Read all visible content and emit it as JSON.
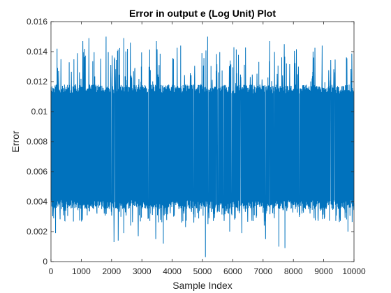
{
  "chart_data": {
    "type": "line",
    "title": "Error in output e (Log Unit) Plot",
    "xlabel": "Sample Index",
    "ylabel": "Error",
    "xlim": [
      0,
      10000
    ],
    "ylim": [
      0,
      0.016
    ],
    "x_ticks": [
      "0",
      "1000",
      "2000",
      "3000",
      "4000",
      "5000",
      "6000",
      "7000",
      "8000",
      "9000",
      "10000"
    ],
    "y_ticks": [
      "0",
      "0.002",
      "0.004",
      "0.006",
      "0.008",
      "0.01",
      "0.012",
      "0.014",
      "0.016"
    ],
    "grid": false,
    "legend": "none",
    "series": [
      {
        "color": "#0072bd",
        "x_range": [
          1,
          10000
        ],
        "band": [
          0.0035,
          0.0118
        ],
        "typical_min": 0.0026,
        "typical_max": 0.0143,
        "upper_spikes": [
          {
            "x": 200,
            "y": 0.0142
          },
          {
            "x": 1050,
            "y": 0.0147
          },
          {
            "x": 1250,
            "y": 0.0149
          },
          {
            "x": 1820,
            "y": 0.015
          },
          {
            "x": 2400,
            "y": 0.0149
          },
          {
            "x": 2620,
            "y": 0.0146
          },
          {
            "x": 3480,
            "y": 0.0147
          },
          {
            "x": 4280,
            "y": 0.0144
          },
          {
            "x": 5170,
            "y": 0.015
          },
          {
            "x": 7220,
            "y": 0.0147
          },
          {
            "x": 7700,
            "y": 0.0145
          },
          {
            "x": 8950,
            "y": 0.0144
          }
        ],
        "lower_spikes": [
          {
            "x": 150,
            "y": 0.0019
          },
          {
            "x": 2080,
            "y": 0.0017
          },
          {
            "x": 2220,
            "y": 0.0014
          },
          {
            "x": 2880,
            "y": 0.0017
          },
          {
            "x": 3460,
            "y": 0.0015
          },
          {
            "x": 5100,
            "y": 0.0003
          },
          {
            "x": 5900,
            "y": 0.002
          },
          {
            "x": 6300,
            "y": 0.0019
          },
          {
            "x": 7080,
            "y": 0.0015
          },
          {
            "x": 7520,
            "y": 0.001
          },
          {
            "x": 7720,
            "y": 0.0009
          },
          {
            "x": 9800,
            "y": 0.002
          }
        ],
        "inner_dips": [
          {
            "x": 2080,
            "y": 0.0013
          },
          {
            "x": 2400,
            "y": 0.0019
          },
          {
            "x": 2630,
            "y": 0.0024
          },
          {
            "x": 3710,
            "y": 0.0012
          },
          {
            "x": 4440,
            "y": 0.0023
          },
          {
            "x": 4700,
            "y": 0.0042
          },
          {
            "x": 5180,
            "y": 0.0025
          },
          {
            "x": 5470,
            "y": 0.0038
          },
          {
            "x": 5820,
            "y": 0.0048
          },
          {
            "x": 6000,
            "y": 0.0051
          },
          {
            "x": 7040,
            "y": 0.0024
          },
          {
            "x": 7370,
            "y": 0.0029
          },
          {
            "x": 7840,
            "y": 0.0048
          },
          {
            "x": 9050,
            "y": 0.0046
          },
          {
            "x": 9570,
            "y": 0.0043
          }
        ]
      }
    ]
  }
}
